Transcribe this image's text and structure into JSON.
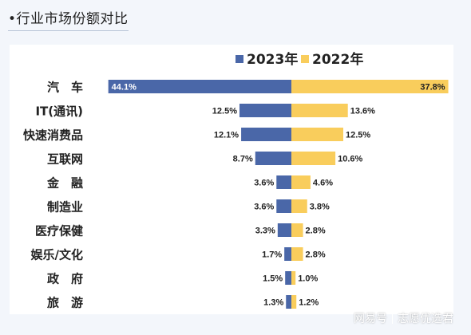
{
  "header": {
    "title": "•行业市场份额对比"
  },
  "watermark": {
    "platform": "网易号",
    "author": "志愿优选君"
  },
  "colors": {
    "series_2023": "#4a67a8",
    "series_2022": "#f9cd5c",
    "panel_bg": "#ffffff",
    "page_bg": "#f3f6fb"
  },
  "chart_data": {
    "type": "bar",
    "orientation": "horizontal-diverging",
    "categories": [
      "汽　车",
      "IT(通讯)",
      "快速消费品",
      "互联网",
      "金　融",
      "制造业",
      "医疗保健",
      "娱乐/文化",
      "政　府",
      "旅　游"
    ],
    "series": [
      {
        "name": "2023年",
        "values": [
          44.1,
          12.5,
          12.1,
          8.7,
          3.6,
          3.6,
          3.3,
          1.7,
          1.5,
          1.3
        ],
        "labels": [
          "44.1%",
          "12.5%",
          "12.1%",
          "8.7%",
          "3.6%",
          "3.6%",
          "3.3%",
          "1.7%",
          "1.5%",
          "1.3%"
        ]
      },
      {
        "name": "2022年",
        "values": [
          37.8,
          13.6,
          12.5,
          10.6,
          4.6,
          3.8,
          2.8,
          2.8,
          1.0,
          1.2
        ],
        "labels": [
          "37.8%",
          "13.6%",
          "12.5%",
          "10.6%",
          "4.6%",
          "3.8%",
          "2.8%",
          "2.8%",
          "1.0%",
          "1.2%"
        ]
      }
    ],
    "legend": "top-center",
    "grid": false
  }
}
